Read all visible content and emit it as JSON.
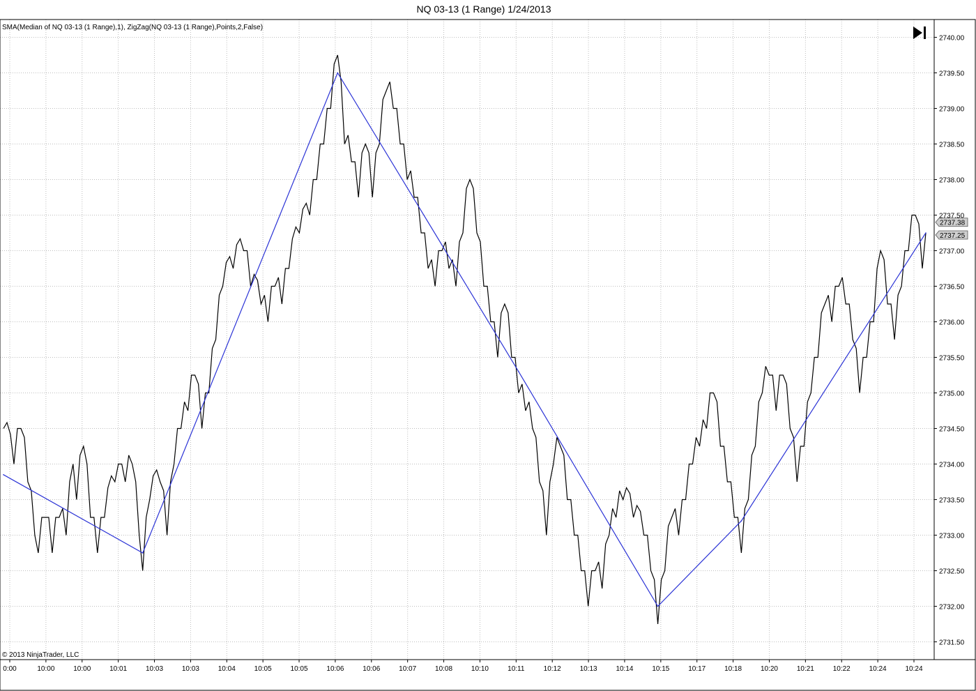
{
  "chart_data": {
    "type": "line",
    "title": "NQ 03-13 (1 Range)  1/24/2013",
    "legend_text": "SMA(Median of NQ 03-13 (1 Range),1), ZigZag(NQ 03-13 (1 Range),Points,2,False)",
    "copyright": "© 2013 NinjaTrader, LLC",
    "ylim": [
      2731.25,
      2740.25
    ],
    "y_ticks": [
      "2731.50",
      "2732.00",
      "2732.50",
      "2733.00",
      "2733.50",
      "2734.00",
      "2734.50",
      "2735.00",
      "2735.50",
      "2736.00",
      "2736.50",
      "2737.00",
      "2737.50",
      "2738.00",
      "2738.50",
      "2739.00",
      "2739.50",
      "2740.00"
    ],
    "y_tick_values": [
      2731.5,
      2732.0,
      2732.5,
      2733.0,
      2733.5,
      2734.0,
      2734.5,
      2735.0,
      2735.5,
      2736.0,
      2736.5,
      2737.0,
      2737.5,
      2738.0,
      2738.5,
      2739.0,
      2739.5,
      2740.0
    ],
    "x_ticks": [
      "0:00",
      "10:00",
      "10:00",
      "10:01",
      "10:03",
      "10:03",
      "10:04",
      "10:05",
      "10:05",
      "10:06",
      "10:06",
      "10:07",
      "10:08",
      "10:10",
      "10:11",
      "10:12",
      "10:13",
      "10:14",
      "10:15",
      "10:17",
      "10:18",
      "10:20",
      "10:21",
      "10:22",
      "10:24",
      "10:24"
    ],
    "bar_count": 260,
    "price_tags": [
      {
        "label": "2737.38",
        "value": 2737.38
      },
      {
        "label": "2737.25",
        "value": 2737.25
      }
    ],
    "grid": true,
    "series": [
      {
        "color": "#000000",
        "anchor_points": [
          [
            0,
            2734.5
          ],
          [
            3,
            2734.0
          ],
          [
            5,
            2734.5
          ],
          [
            7,
            2733.75
          ],
          [
            9,
            2733.0
          ],
          [
            10,
            2732.75
          ],
          [
            12,
            2733.25
          ],
          [
            14,
            2732.75
          ],
          [
            16,
            2733.25
          ],
          [
            18,
            2733.0
          ],
          [
            20,
            2734.0
          ],
          [
            21,
            2733.5
          ],
          [
            23,
            2734.25
          ],
          [
            25,
            2733.25
          ],
          [
            27,
            2732.75
          ],
          [
            29,
            2733.25
          ],
          [
            32,
            2733.75
          ],
          [
            35,
            2733.75
          ],
          [
            37,
            2734.0
          ],
          [
            39,
            2733.0
          ],
          [
            40,
            2732.5
          ],
          [
            42,
            2733.5
          ],
          [
            45,
            2733.75
          ],
          [
            47,
            2733.0
          ],
          [
            49,
            2734.0
          ],
          [
            51,
            2734.5
          ],
          [
            53,
            2734.75
          ],
          [
            55,
            2735.25
          ],
          [
            57,
            2734.5
          ],
          [
            59,
            2735.0
          ],
          [
            61,
            2735.75
          ],
          [
            63,
            2736.5
          ],
          [
            66,
            2736.75
          ],
          [
            69,
            2737.0
          ],
          [
            71,
            2736.5
          ],
          [
            74,
            2736.25
          ],
          [
            76,
            2736.0
          ],
          [
            78,
            2736.5
          ],
          [
            80,
            2736.25
          ],
          [
            82,
            2736.75
          ],
          [
            85,
            2737.25
          ],
          [
            88,
            2737.5
          ],
          [
            90,
            2738.0
          ],
          [
            92,
            2738.5
          ],
          [
            94,
            2739.0
          ],
          [
            96,
            2739.75
          ],
          [
            98,
            2738.5
          ],
          [
            100,
            2738.25
          ],
          [
            102,
            2737.75
          ],
          [
            104,
            2738.5
          ],
          [
            106,
            2737.75
          ],
          [
            108,
            2738.5
          ],
          [
            110,
            2739.25
          ],
          [
            112,
            2739.0
          ],
          [
            114,
            2738.5
          ],
          [
            116,
            2738.0
          ],
          [
            118,
            2737.75
          ],
          [
            120,
            2737.25
          ],
          [
            122,
            2736.75
          ],
          [
            124,
            2736.5
          ],
          [
            126,
            2737.0
          ],
          [
            128,
            2736.75
          ],
          [
            130,
            2736.5
          ],
          [
            132,
            2737.25
          ],
          [
            134,
            2738.0
          ],
          [
            136,
            2737.25
          ],
          [
            138,
            2736.5
          ],
          [
            140,
            2736.0
          ],
          [
            142,
            2735.5
          ],
          [
            144,
            2736.25
          ],
          [
            146,
            2735.5
          ],
          [
            148,
            2735.0
          ],
          [
            150,
            2734.75
          ],
          [
            152,
            2734.5
          ],
          [
            154,
            2733.75
          ],
          [
            156,
            2733.0
          ],
          [
            158,
            2734.0
          ],
          [
            160,
            2734.25
          ],
          [
            162,
            2733.5
          ],
          [
            164,
            2733.0
          ],
          [
            166,
            2732.5
          ],
          [
            168,
            2732.0
          ],
          [
            170,
            2732.5
          ],
          [
            172,
            2732.25
          ],
          [
            174,
            2733.0
          ],
          [
            176,
            2733.25
          ],
          [
            178,
            2733.5
          ],
          [
            181,
            2733.25
          ],
          [
            184,
            2733.0
          ],
          [
            186,
            2732.5
          ],
          [
            188,
            2731.75
          ],
          [
            190,
            2732.5
          ],
          [
            192,
            2733.25
          ],
          [
            194,
            2733.0
          ],
          [
            196,
            2733.5
          ],
          [
            198,
            2734.0
          ],
          [
            200,
            2734.25
          ],
          [
            202,
            2734.5
          ],
          [
            204,
            2735.0
          ],
          [
            206,
            2734.25
          ],
          [
            208,
            2733.75
          ],
          [
            210,
            2733.25
          ],
          [
            212,
            2732.75
          ],
          [
            214,
            2733.5
          ],
          [
            216,
            2734.25
          ],
          [
            218,
            2735.0
          ],
          [
            220,
            2735.25
          ],
          [
            222,
            2734.75
          ],
          [
            224,
            2735.25
          ],
          [
            226,
            2734.5
          ],
          [
            228,
            2733.75
          ],
          [
            230,
            2734.25
          ],
          [
            232,
            2735.0
          ],
          [
            234,
            2735.5
          ],
          [
            236,
            2736.25
          ],
          [
            238,
            2736.0
          ],
          [
            240,
            2736.5
          ],
          [
            242,
            2736.25
          ],
          [
            244,
            2735.75
          ],
          [
            246,
            2735.0
          ],
          [
            248,
            2735.5
          ],
          [
            250,
            2736.0
          ],
          [
            252,
            2737.0
          ],
          [
            254,
            2736.25
          ],
          [
            256,
            2735.75
          ],
          [
            258,
            2736.5
          ],
          [
            260,
            2737.0
          ],
          [
            262,
            2737.5
          ],
          [
            264,
            2736.75
          ],
          [
            265,
            2737.25
          ]
        ]
      },
      {
        "color": "#2b33d6",
        "points": [
          [
            0,
            2733.85
          ],
          [
            40,
            2732.75
          ],
          [
            96,
            2739.5
          ],
          [
            148,
            2735.3
          ],
          [
            188,
            2732.0
          ],
          [
            212,
            2733.2
          ],
          [
            265,
            2737.25
          ]
        ]
      }
    ]
  }
}
